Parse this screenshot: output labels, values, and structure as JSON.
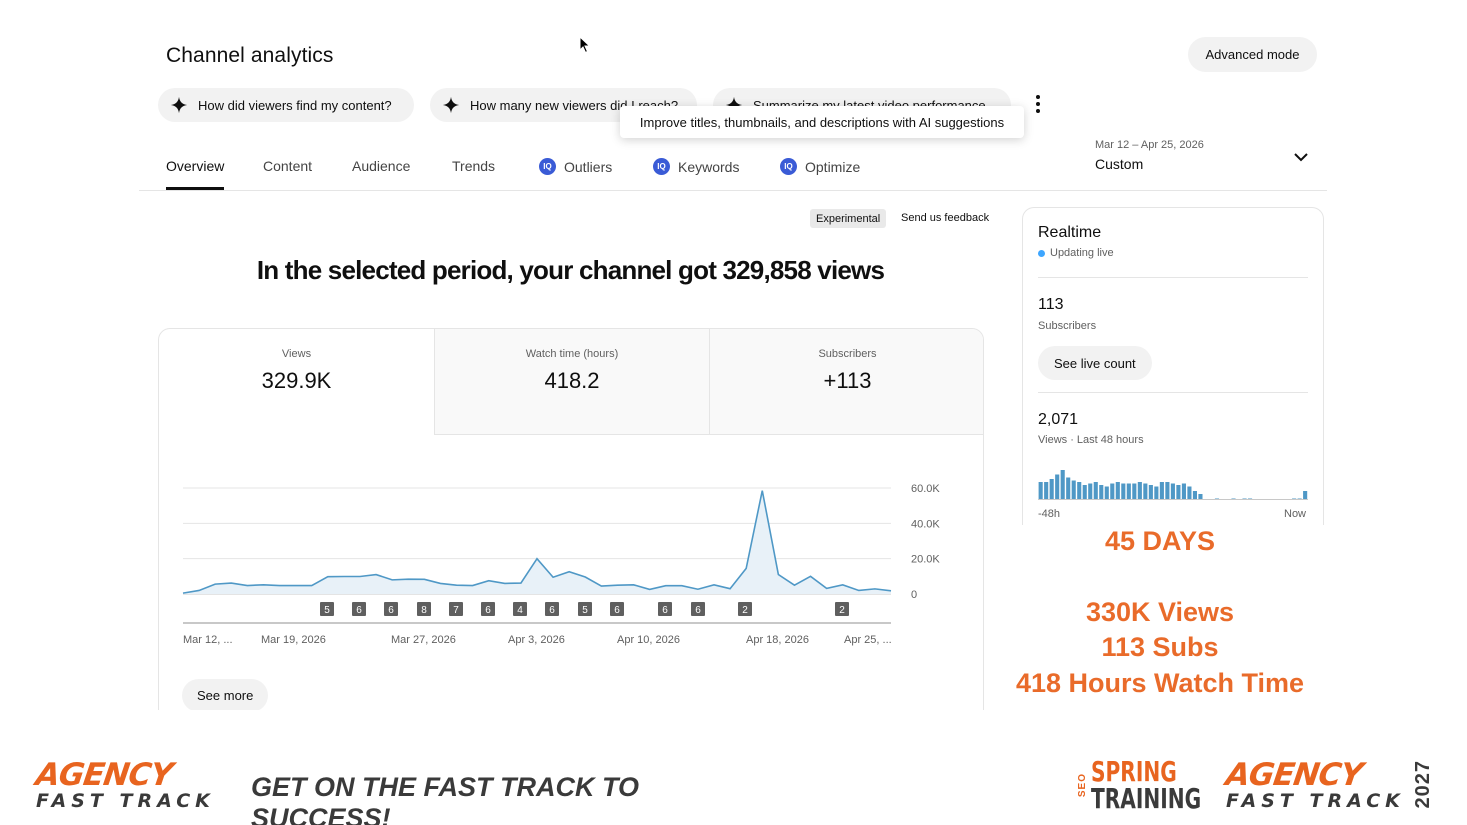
{
  "header": {
    "title": "Channel analytics",
    "advanced_mode": "Advanced mode"
  },
  "suggestions": [
    {
      "label": "How did viewers find my content?",
      "icon": "sparkle-icon"
    },
    {
      "label": "How many new viewers did I reach?",
      "icon": "sparkle-icon"
    },
    {
      "label": "Summarize my latest video performance",
      "icon": "sparkle-icon"
    }
  ],
  "tooltip": "Improve titles, thumbnails, and descriptions with AI suggestions",
  "tabs": [
    {
      "label": "Overview",
      "active": true
    },
    {
      "label": "Content"
    },
    {
      "label": "Audience"
    },
    {
      "label": "Trends"
    },
    {
      "label": "Outliers",
      "ai_badge": "IQ"
    },
    {
      "label": "Keywords",
      "ai_badge": "IQ"
    },
    {
      "label": "Optimize",
      "ai_badge": "IQ"
    }
  ],
  "date": {
    "range": "Mar 12 – Apr 25, 2026",
    "preset": "Custom"
  },
  "experimental": {
    "badge": "Experimental",
    "feedback": "Send us feedback"
  },
  "headline": "In the selected period, your channel got 329,858 views",
  "metrics": [
    {
      "label": "Views",
      "value": "329.9K"
    },
    {
      "label": "Watch time (hours)",
      "value": "418.2"
    },
    {
      "label": "Subscribers",
      "value": "+113"
    }
  ],
  "chart_data": {
    "type": "area",
    "series": [
      {
        "values": [
          500,
          2000,
          5600,
          6200,
          4800,
          5200,
          4800,
          4800,
          4800,
          9800,
          9900,
          9900,
          11000,
          8000,
          8400,
          8300,
          6000,
          5000,
          4800,
          7500,
          6000,
          6200,
          20000,
          9500,
          12600,
          9600,
          4500,
          5000,
          5200,
          2600,
          4700,
          4700,
          2700,
          5200,
          3000,
          14500,
          58500,
          11000,
          5000,
          10000,
          3200,
          5200,
          2000,
          2900,
          1800
        ]
      }
    ],
    "y_ticks": [
      "60.0K",
      "40.0K",
      "20.0K",
      "0"
    ],
    "ylim": [
      0,
      60000
    ],
    "x_ticks": [
      "Mar 12, ...",
      "Mar 19, 2026",
      "Mar 27, 2026",
      "Apr 3, 2026",
      "Apr 10, 2026",
      "Apr 18, 2026",
      "Apr 25, ..."
    ],
    "markers": [
      "5",
      "6",
      "6",
      "8",
      "7",
      "6",
      "4",
      "6",
      "5",
      "6",
      "6",
      "6",
      "2",
      "2"
    ],
    "colors": {
      "line": "#4f98c6",
      "fill": "#e8f1f8",
      "grid": "#e5e5e5",
      "marker": "#5f5f5f"
    }
  },
  "see_more": "See more",
  "realtime": {
    "title": "Realtime",
    "status": "Updating live",
    "subs_value": "113",
    "subs_label": "Subscribers",
    "live_button": "See live count",
    "views_value": "2,071",
    "views_label": "Views · Last 48 hours",
    "axis_start": "-48h",
    "axis_end": "Now",
    "bars": [
      60,
      60,
      70,
      85,
      100,
      75,
      65,
      60,
      50,
      55,
      60,
      50,
      45,
      55,
      60,
      55,
      55,
      55,
      60,
      55,
      50,
      45,
      60,
      60,
      55,
      50,
      55,
      45,
      30,
      20,
      0,
      0,
      5,
      0,
      0,
      5,
      0,
      5,
      5,
      0,
      0,
      0,
      0,
      0,
      0,
      0,
      5,
      5,
      30
    ],
    "bar_color": "#4f98c6"
  },
  "promo": {
    "line1": "45 DAYS",
    "line2": "330K Views",
    "line3": "113 Subs",
    "line4": "418 Hours Watch Time",
    "color": "#e96b2a"
  },
  "footer": {
    "logo_top": "AGENCY",
    "logo_bottom": "FAST TRACK",
    "tagline": "GET ON THE FAST TRACK TO SUCCESS!",
    "seo_small": "SEO",
    "seo_spring": "SPRING",
    "seo_training": "TRAINING",
    "year": "2027",
    "brand_color": "#e8641f"
  }
}
